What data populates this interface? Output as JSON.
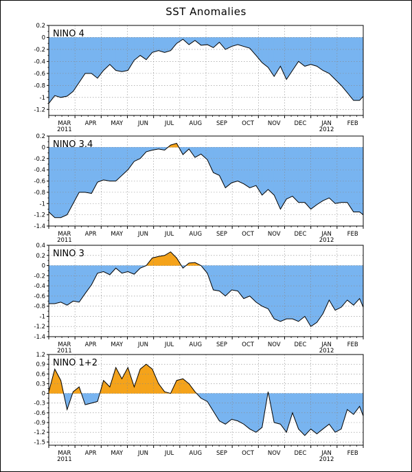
{
  "title": "SST Anomalies",
  "colors": {
    "negative": "#78b4f0",
    "positive": "#f5a31a",
    "grid": "#888888",
    "line": "#000000"
  },
  "chart_data": [
    {
      "type": "area",
      "title": "NINO 4",
      "ylim": [
        -1.3,
        0.2
      ],
      "yticks": [
        0.2,
        0,
        -0.2,
        -0.4,
        -0.6,
        -0.8,
        -1,
        -1.2
      ],
      "ytick_labels": [
        "0.2",
        "0",
        "-0.2",
        "-0.4",
        "-0.6",
        "-0.8",
        "-1",
        "-1.2"
      ],
      "xlim": [
        0,
        12
      ],
      "month_labels": [
        "MAR",
        "APR",
        "MAY",
        "JUN",
        "JUL",
        "AUG",
        "SEP",
        "OCT",
        "NOV",
        "DEC",
        "JAN",
        "FEB"
      ],
      "year_labels": [
        "2011",
        "2012"
      ],
      "x": [
        0,
        0.23,
        0.46,
        0.7,
        0.93,
        1.16,
        1.39,
        1.63,
        1.86,
        2.09,
        2.33,
        2.56,
        2.79,
        3.02,
        3.26,
        3.49,
        3.72,
        3.95,
        4.19,
        4.42,
        4.65,
        4.88,
        5.12,
        5.35,
        5.58,
        5.81,
        6.05,
        6.28,
        6.51,
        6.74,
        6.98,
        7.21,
        7.44,
        7.67,
        7.91,
        8.14,
        8.37,
        8.6,
        8.84,
        9.07,
        9.3,
        9.53,
        9.77,
        10,
        10.23,
        10.46,
        10.7,
        10.93,
        11.16,
        11.39,
        11.63,
        11.86,
        12
      ],
      "values": [
        -1.1,
        -0.97,
        -1.0,
        -0.98,
        -0.9,
        -0.75,
        -0.6,
        -0.6,
        -0.68,
        -0.55,
        -0.45,
        -0.55,
        -0.57,
        -0.55,
        -0.38,
        -0.3,
        -0.37,
        -0.25,
        -0.22,
        -0.25,
        -0.22,
        -0.1,
        -0.03,
        -0.12,
        -0.05,
        -0.13,
        -0.12,
        -0.17,
        -0.08,
        -0.2,
        -0.15,
        -0.12,
        -0.15,
        -0.18,
        -0.3,
        -0.42,
        -0.5,
        -0.65,
        -0.48,
        -0.7,
        -0.55,
        -0.4,
        -0.48,
        -0.45,
        -0.48,
        -0.55,
        -0.6,
        -0.7,
        -0.8,
        -0.92,
        -1.05,
        -1.05,
        -0.98
      ]
    },
    {
      "type": "area",
      "title": "NINO 3.4",
      "ylim": [
        -1.4,
        0.2
      ],
      "yticks": [
        0.2,
        0,
        -0.2,
        -0.4,
        -0.6,
        -0.8,
        -1,
        -1.2,
        -1.4
      ],
      "ytick_labels": [
        "0.2",
        "0",
        "-0.2",
        "-0.4",
        "-0.6",
        "-0.8",
        "-1",
        "-1.2",
        "-1.4"
      ],
      "xlim": [
        0,
        12
      ],
      "month_labels": [
        "MAR",
        "APR",
        "MAY",
        "JUN",
        "JUL",
        "AUG",
        "SEP",
        "OCT",
        "NOV",
        "DEC",
        "JAN",
        "FEB"
      ],
      "year_labels": [
        "2011",
        "2012"
      ],
      "x": [
        0,
        0.23,
        0.46,
        0.7,
        0.93,
        1.16,
        1.39,
        1.63,
        1.86,
        2.09,
        2.33,
        2.56,
        2.79,
        3.02,
        3.26,
        3.49,
        3.72,
        3.95,
        4.19,
        4.42,
        4.65,
        4.88,
        5.12,
        5.35,
        5.58,
        5.81,
        6.05,
        6.28,
        6.51,
        6.74,
        6.98,
        7.21,
        7.44,
        7.67,
        7.91,
        8.14,
        8.37,
        8.6,
        8.84,
        9.07,
        9.3,
        9.53,
        9.77,
        10,
        10.23,
        10.46,
        10.7,
        10.93,
        11.16,
        11.39,
        11.63,
        11.86,
        12
      ],
      "values": [
        -1.15,
        -1.25,
        -1.25,
        -1.2,
        -1.0,
        -0.8,
        -0.8,
        -0.82,
        -0.62,
        -0.58,
        -0.6,
        -0.6,
        -0.5,
        -0.4,
        -0.25,
        -0.2,
        -0.08,
        -0.05,
        -0.03,
        -0.05,
        0.04,
        0.07,
        -0.13,
        -0.03,
        -0.18,
        -0.12,
        -0.22,
        -0.45,
        -0.5,
        -0.72,
        -0.63,
        -0.6,
        -0.65,
        -0.72,
        -0.68,
        -0.85,
        -0.75,
        -0.85,
        -1.1,
        -0.92,
        -0.87,
        -0.98,
        -0.98,
        -1.1,
        -1.02,
        -0.95,
        -0.9,
        -1.0,
        -0.98,
        -0.98,
        -1.15,
        -1.15,
        -1.2
      ]
    },
    {
      "type": "area",
      "title": "NINO 3",
      "ylim": [
        -1.4,
        0.4
      ],
      "yticks": [
        0.4,
        0.2,
        0,
        -0.2,
        -0.4,
        -0.6,
        -0.8,
        -1,
        -1.2,
        -1.4
      ],
      "ytick_labels": [
        "0.4",
        "0.2",
        "0",
        "-0.2",
        "-0.4",
        "-0.6",
        "-0.8",
        "-1",
        "-1.2",
        "-1.4"
      ],
      "xlim": [
        0,
        12
      ],
      "month_labels": [
        "MAR",
        "APR",
        "MAY",
        "JUN",
        "JUL",
        "AUG",
        "SEP",
        "OCT",
        "NOV",
        "DEC",
        "JAN",
        "FEB"
      ],
      "year_labels": [
        "2011",
        "2012"
      ],
      "x": [
        0,
        0.23,
        0.46,
        0.7,
        0.93,
        1.16,
        1.39,
        1.63,
        1.86,
        2.09,
        2.33,
        2.56,
        2.79,
        3.02,
        3.26,
        3.49,
        3.72,
        3.95,
        4.19,
        4.42,
        4.65,
        4.88,
        5.12,
        5.35,
        5.58,
        5.81,
        6.05,
        6.28,
        6.51,
        6.74,
        6.98,
        7.21,
        7.44,
        7.67,
        7.91,
        8.14,
        8.37,
        8.6,
        8.84,
        9.07,
        9.3,
        9.53,
        9.77,
        10,
        10.23,
        10.46,
        10.7,
        10.93,
        11.16,
        11.39,
        11.63,
        11.86,
        12
      ],
      "values": [
        -0.75,
        -0.75,
        -0.72,
        -0.78,
        -0.7,
        -0.72,
        -0.55,
        -0.38,
        -0.15,
        -0.12,
        -0.18,
        -0.05,
        -0.15,
        -0.12,
        -0.17,
        -0.05,
        0.0,
        0.15,
        0.18,
        0.2,
        0.27,
        0.15,
        -0.05,
        0.05,
        0.06,
        0.0,
        -0.15,
        -0.48,
        -0.5,
        -0.6,
        -0.48,
        -0.5,
        -0.65,
        -0.6,
        -0.72,
        -0.8,
        -0.85,
        -1.05,
        -1.1,
        -1.05,
        -1.05,
        -1.1,
        -1.0,
        -1.2,
        -1.12,
        -0.95,
        -0.68,
        -0.88,
        -0.82,
        -0.68,
        -0.78,
        -0.65,
        -0.82
      ]
    },
    {
      "type": "area",
      "title": "NINO 1+2",
      "ylim": [
        -1.6,
        1.2
      ],
      "yticks": [
        1.2,
        0.9,
        0.6,
        0.3,
        0,
        -0.3,
        -0.6,
        -0.9,
        -1.2,
        -1.5
      ],
      "ytick_labels": [
        "1.2",
        "0.9",
        "0.6",
        "0.3",
        "0",
        "-0.3",
        "-0.6",
        "-0.9",
        "-1.2",
        "-1.5"
      ],
      "xlim": [
        0,
        12
      ],
      "month_labels": [
        "MAR",
        "APR",
        "MAY",
        "JUN",
        "JUL",
        "AUG",
        "SEP",
        "OCT",
        "NOV",
        "DEC",
        "JAN",
        "FEB"
      ],
      "year_labels": [
        "2011",
        "2012"
      ],
      "x": [
        0,
        0.23,
        0.46,
        0.7,
        0.93,
        1.16,
        1.39,
        1.63,
        1.86,
        2.09,
        2.33,
        2.56,
        2.79,
        3.02,
        3.26,
        3.49,
        3.72,
        3.95,
        4.19,
        4.42,
        4.65,
        4.88,
        5.12,
        5.35,
        5.58,
        5.81,
        6.05,
        6.28,
        6.51,
        6.74,
        6.98,
        7.21,
        7.44,
        7.67,
        7.91,
        8.14,
        8.37,
        8.6,
        8.84,
        9.07,
        9.3,
        9.53,
        9.77,
        10,
        10.23,
        10.46,
        10.7,
        10.93,
        11.16,
        11.39,
        11.63,
        11.86,
        12
      ],
      "values": [
        0.05,
        0.75,
        0.4,
        -0.5,
        0.05,
        0.2,
        -0.35,
        -0.3,
        -0.25,
        0.4,
        0.2,
        0.8,
        0.45,
        0.8,
        0.2,
        0.75,
        0.9,
        0.75,
        0.3,
        0.05,
        0.0,
        0.4,
        0.45,
        0.3,
        0.05,
        -0.15,
        -0.25,
        -0.55,
        -0.85,
        -0.95,
        -0.8,
        -0.85,
        -0.95,
        -1.1,
        -1.2,
        -1.05,
        0.05,
        -0.9,
        -0.95,
        -1.2,
        -0.6,
        -1.1,
        -1.3,
        -1.1,
        -1.25,
        -1.1,
        -0.95,
        -1.2,
        -1.1,
        -0.5,
        -0.65,
        -0.4,
        -0.7
      ]
    }
  ]
}
